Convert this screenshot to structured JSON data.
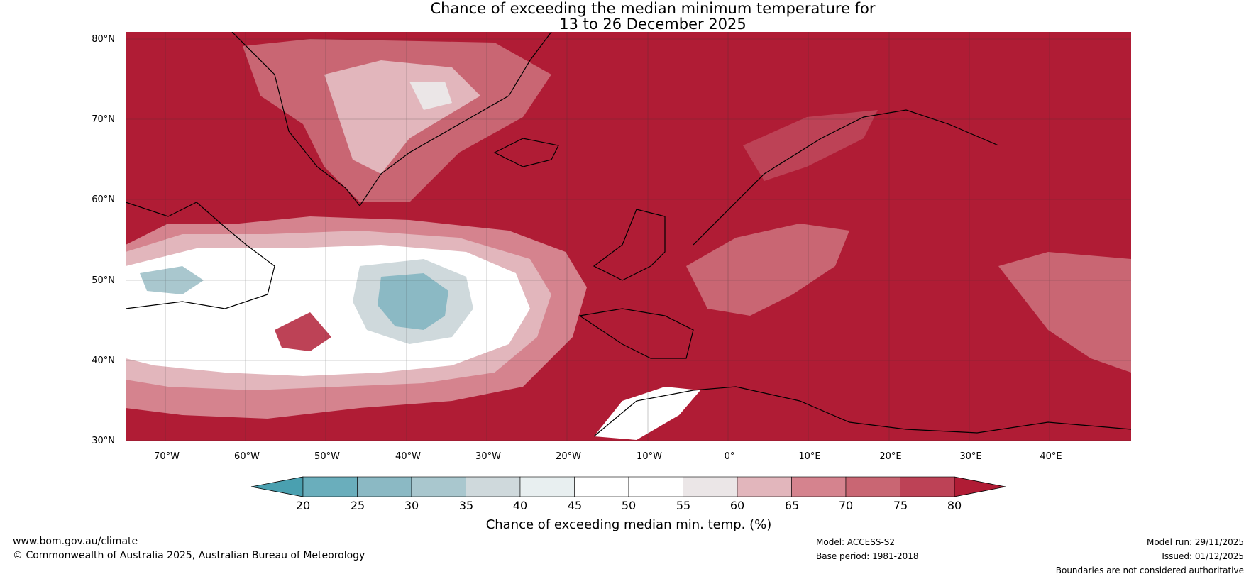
{
  "title": {
    "line1": "Chance of exceeding the median minimum temperature for",
    "line2": "13 to 26 December 2025"
  },
  "map": {
    "lat_labels": [
      "80°N",
      "70°N",
      "60°N",
      "50°N",
      "40°N",
      "30°N"
    ],
    "lon_labels": [
      "70°W",
      "60°W",
      "50°W",
      "40°W",
      "30°W",
      "20°W",
      "10°W",
      "0°",
      "10°E",
      "20°E",
      "30°E",
      "40°E"
    ],
    "lat_range": [
      30,
      81
    ],
    "lon_range": [
      -75,
      50
    ],
    "dominant_color": "#b01c35"
  },
  "colorbar": {
    "ticks": [
      "20",
      "25",
      "30",
      "35",
      "40",
      "45",
      "50",
      "55",
      "60",
      "65",
      "70",
      "75",
      "80"
    ],
    "colors": [
      "#4aa0b0",
      "#6aaebc",
      "#8bb9c4",
      "#a9c7ce",
      "#cfd9dc",
      "#e8eff0",
      "#ffffff",
      "#ffffff",
      "#ebe6e7",
      "#e2b6bc",
      "#d5838e",
      "#c96673",
      "#bd4256",
      "#b01c35"
    ],
    "label": "Chance of exceeding median min. temp. (%)"
  },
  "footer": {
    "website": "www.bom.gov.au/climate",
    "copyright": "© Commonwealth of Australia 2025, Australian Bureau of Meteorology",
    "model": "Model: ACCESS-S2",
    "base_period": "Base period: 1981-2018",
    "model_run": "Model run: 29/11/2025",
    "issued": "Issued: 01/12/2025",
    "disclaimer": "Boundaries are not considered authoritative"
  }
}
